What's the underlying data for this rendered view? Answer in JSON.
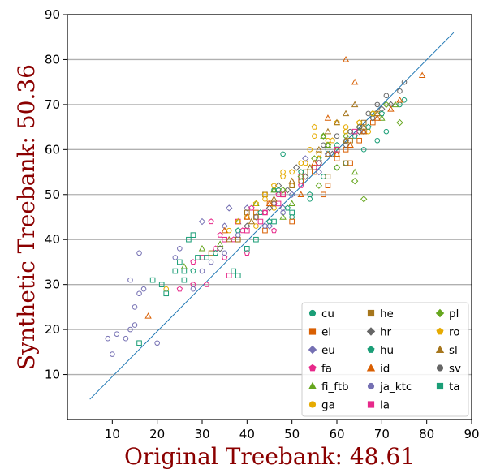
{
  "chart_data": {
    "type": "scatter",
    "xlabel": "Original Treebank: 48.61",
    "ylabel": "Synthetic Treebank: 50.36",
    "xlim": [
      0,
      90
    ],
    "ylim": [
      0,
      90
    ],
    "x_ticks": [
      "10",
      "20",
      "30",
      "40",
      "50",
      "60",
      "70",
      "80",
      "90"
    ],
    "y_ticks": [
      "10",
      "20",
      "30",
      "40",
      "50",
      "60",
      "70",
      "80",
      "90"
    ],
    "grid": "horizontal",
    "reference_line": [
      [
        5,
        4.5
      ],
      [
        86,
        86
      ]
    ],
    "legend_position": "lower-right",
    "series": [
      {
        "name": "cu",
        "color": "#1b9e77",
        "marker": "circle",
        "points": [
          [
            48,
            59
          ],
          [
            52,
            53
          ],
          [
            55,
            56
          ],
          [
            57,
            54
          ],
          [
            46,
            51
          ],
          [
            50,
            45
          ],
          [
            58,
            60
          ],
          [
            62,
            57
          ],
          [
            66,
            60
          ],
          [
            69,
            62
          ],
          [
            71,
            64
          ],
          [
            74,
            70
          ],
          [
            75,
            71
          ],
          [
            54,
            49
          ],
          [
            60,
            56
          ]
        ]
      },
      {
        "name": "el",
        "color": "#d95f02",
        "marker": "square",
        "points": [
          [
            38,
            40
          ],
          [
            42,
            46
          ],
          [
            45,
            48
          ],
          [
            48,
            50
          ],
          [
            52,
            53
          ],
          [
            55,
            55
          ],
          [
            58,
            52
          ],
          [
            60,
            58
          ],
          [
            62,
            60
          ],
          [
            65,
            62
          ],
          [
            68,
            66
          ],
          [
            57,
            50
          ],
          [
            50,
            44
          ],
          [
            63,
            57
          ],
          [
            44,
            42
          ]
        ]
      },
      {
        "name": "eu",
        "color": "#7570b3",
        "marker": "diamond",
        "points": [
          [
            30,
            44
          ],
          [
            36,
            47
          ],
          [
            40,
            47
          ],
          [
            42,
            45
          ],
          [
            46,
            48
          ],
          [
            50,
            50
          ],
          [
            53,
            58
          ],
          [
            56,
            55
          ],
          [
            58,
            59
          ],
          [
            62,
            62
          ],
          [
            66,
            64
          ],
          [
            45,
            43
          ],
          [
            48,
            47
          ],
          [
            35,
            43
          ]
        ]
      },
      {
        "name": "fa",
        "color": "#e7298a",
        "marker": "pentagon",
        "points": [
          [
            28,
            30
          ],
          [
            31,
            30
          ],
          [
            33,
            38
          ],
          [
            35,
            36
          ],
          [
            37,
            40
          ],
          [
            39,
            42
          ],
          [
            41,
            47
          ],
          [
            44,
            46
          ],
          [
            47,
            50
          ],
          [
            52,
            52
          ],
          [
            55,
            56
          ],
          [
            32,
            44
          ],
          [
            28,
            35
          ],
          [
            34,
            41
          ],
          [
            40,
            37
          ],
          [
            46,
            42
          ],
          [
            25,
            29
          ]
        ]
      },
      {
        "name": "fi_ftb",
        "color": "#66a61e",
        "marker": "triangle",
        "points": [
          [
            26,
            34
          ],
          [
            30,
            38
          ],
          [
            34,
            39
          ],
          [
            38,
            44
          ],
          [
            42,
            48
          ],
          [
            46,
            51
          ],
          [
            50,
            48
          ],
          [
            54,
            56
          ],
          [
            58,
            61
          ],
          [
            62,
            62
          ],
          [
            66,
            64
          ],
          [
            70,
            67
          ],
          [
            73,
            70
          ],
          [
            56,
            58
          ],
          [
            48,
            45
          ],
          [
            60,
            60
          ],
          [
            64,
            55
          ],
          [
            57,
            63
          ]
        ]
      },
      {
        "name": "ga",
        "color": "#e6ab02",
        "marker": "circle",
        "points": [
          [
            36,
            42
          ],
          [
            40,
            45
          ],
          [
            44,
            49
          ],
          [
            48,
            55
          ],
          [
            52,
            57
          ],
          [
            55,
            63
          ],
          [
            58,
            62
          ],
          [
            62,
            65
          ],
          [
            65,
            66
          ],
          [
            68,
            68
          ],
          [
            54,
            60
          ],
          [
            50,
            52
          ],
          [
            46,
            47
          ],
          [
            42,
            43
          ],
          [
            22,
            29
          ],
          [
            60,
            59
          ],
          [
            67,
            64
          ]
        ]
      },
      {
        "name": "he",
        "color": "#a6761d",
        "marker": "square",
        "points": [
          [
            32,
            37
          ],
          [
            38,
            40
          ],
          [
            42,
            45
          ],
          [
            46,
            48
          ],
          [
            50,
            52
          ],
          [
            53,
            55
          ],
          [
            56,
            57
          ],
          [
            60,
            60
          ],
          [
            63,
            62
          ],
          [
            66,
            66
          ],
          [
            69,
            68
          ],
          [
            44,
            50
          ],
          [
            58,
            54
          ],
          [
            62,
            57
          ],
          [
            40,
            46
          ]
        ]
      },
      {
        "name": "hr",
        "color": "#666666",
        "marker": "diamond",
        "points": [
          [
            34,
            38
          ],
          [
            40,
            43
          ],
          [
            45,
            47
          ],
          [
            49,
            51
          ],
          [
            53,
            54
          ],
          [
            56,
            57
          ],
          [
            59,
            59
          ],
          [
            62,
            61
          ],
          [
            65,
            64
          ],
          [
            68,
            67
          ],
          [
            70,
            69
          ],
          [
            72,
            70
          ],
          [
            51,
            56
          ],
          [
            47,
            52
          ]
        ]
      },
      {
        "name": "hu",
        "color": "#1b9e77",
        "marker": "pentagon",
        "points": [
          [
            28,
            33
          ],
          [
            33,
            37
          ],
          [
            38,
            42
          ],
          [
            43,
            46
          ],
          [
            47,
            51
          ],
          [
            52,
            55
          ],
          [
            56,
            58
          ],
          [
            60,
            61
          ],
          [
            64,
            63
          ],
          [
            67,
            65
          ],
          [
            70,
            68
          ],
          [
            54,
            50
          ],
          [
            49,
            47
          ],
          [
            45,
            44
          ]
        ]
      },
      {
        "name": "id",
        "color": "#d95f02",
        "marker": "triangle",
        "points": [
          [
            18,
            23
          ],
          [
            35,
            42
          ],
          [
            40,
            45
          ],
          [
            45,
            48
          ],
          [
            50,
            53
          ],
          [
            55,
            57
          ],
          [
            60,
            59
          ],
          [
            63,
            61
          ],
          [
            66,
            64
          ],
          [
            69,
            67
          ],
          [
            72,
            69
          ],
          [
            74,
            71
          ],
          [
            79,
            76.5
          ],
          [
            62,
            80
          ],
          [
            64,
            75
          ],
          [
            58,
            67
          ],
          [
            52,
            50
          ]
        ]
      },
      {
        "name": "ja_ktc",
        "color": "#7570b3",
        "marker": "circle",
        "points": [
          [
            9,
            18
          ],
          [
            10,
            14.5
          ],
          [
            11,
            19
          ],
          [
            13,
            18
          ],
          [
            14,
            31
          ],
          [
            14,
            20
          ],
          [
            15,
            25
          ],
          [
            15,
            21
          ],
          [
            16,
            37
          ],
          [
            17,
            29
          ],
          [
            20,
            17
          ],
          [
            24,
            36
          ],
          [
            25,
            38
          ],
          [
            28,
            29
          ],
          [
            30,
            33
          ],
          [
            32,
            35
          ],
          [
            35,
            37
          ],
          [
            38,
            41
          ],
          [
            44,
            43
          ],
          [
            48,
            46
          ],
          [
            16,
            28
          ]
        ]
      },
      {
        "name": "la",
        "color": "#e7298a",
        "marker": "square",
        "points": [
          [
            30,
            36
          ],
          [
            35,
            40
          ],
          [
            40,
            42
          ],
          [
            44,
            46
          ],
          [
            48,
            50
          ],
          [
            52,
            54
          ],
          [
            56,
            57
          ],
          [
            60,
            60
          ],
          [
            64,
            64
          ],
          [
            47,
            48
          ],
          [
            38,
            44
          ],
          [
            43,
            44
          ],
          [
            36,
            32
          ]
        ]
      },
      {
        "name": "pl",
        "color": "#66a61e",
        "marker": "diamond",
        "points": [
          [
            48,
            51
          ],
          [
            52,
            54
          ],
          [
            55,
            58
          ],
          [
            58,
            61
          ],
          [
            62,
            63
          ],
          [
            65,
            65
          ],
          [
            68,
            68
          ],
          [
            71,
            70
          ],
          [
            74,
            66
          ],
          [
            56,
            52
          ],
          [
            60,
            56
          ],
          [
            64,
            53
          ],
          [
            66,
            49
          ],
          [
            57,
            63
          ]
        ]
      },
      {
        "name": "ro",
        "color": "#e6ab02",
        "marker": "pentagon",
        "points": [
          [
            38,
            44
          ],
          [
            42,
            48
          ],
          [
            46,
            52
          ],
          [
            50,
            55
          ],
          [
            53,
            57
          ],
          [
            56,
            59
          ],
          [
            59,
            62
          ],
          [
            62,
            64
          ],
          [
            65,
            66
          ],
          [
            68,
            68
          ],
          [
            55,
            65
          ],
          [
            60,
            66
          ],
          [
            48,
            54
          ],
          [
            44,
            50
          ]
        ]
      },
      {
        "name": "sl",
        "color": "#a6761d",
        "marker": "triangle",
        "points": [
          [
            36,
            40
          ],
          [
            41,
            44
          ],
          [
            46,
            49
          ],
          [
            50,
            53
          ],
          [
            54,
            56
          ],
          [
            58,
            59
          ],
          [
            62,
            62
          ],
          [
            66,
            65
          ],
          [
            69,
            68
          ],
          [
            62,
            68
          ],
          [
            60,
            66
          ],
          [
            64,
            70
          ],
          [
            58,
            64
          ],
          [
            56,
            60
          ]
        ]
      },
      {
        "name": "sv",
        "color": "#666666",
        "marker": "circle",
        "points": [
          [
            57,
            61
          ],
          [
            60,
            63
          ],
          [
            63,
            64
          ],
          [
            65,
            65
          ],
          [
            67,
            68
          ],
          [
            69,
            70
          ],
          [
            71,
            72
          ],
          [
            74,
            73
          ],
          [
            75,
            75
          ]
        ]
      },
      {
        "name": "ta",
        "color": "#1b9e77",
        "marker": "square",
        "points": [
          [
            16,
            17
          ],
          [
            19,
            31
          ],
          [
            21,
            30
          ],
          [
            22,
            28
          ],
          [
            24,
            33
          ],
          [
            25,
            35
          ],
          [
            26,
            33
          ],
          [
            27,
            40
          ],
          [
            28,
            41
          ],
          [
            29,
            36
          ],
          [
            31,
            36
          ],
          [
            37,
            33
          ],
          [
            38,
            32
          ],
          [
            40,
            38
          ],
          [
            42,
            40
          ],
          [
            46,
            44
          ],
          [
            50,
            46
          ],
          [
            26,
            31
          ]
        ]
      }
    ]
  }
}
